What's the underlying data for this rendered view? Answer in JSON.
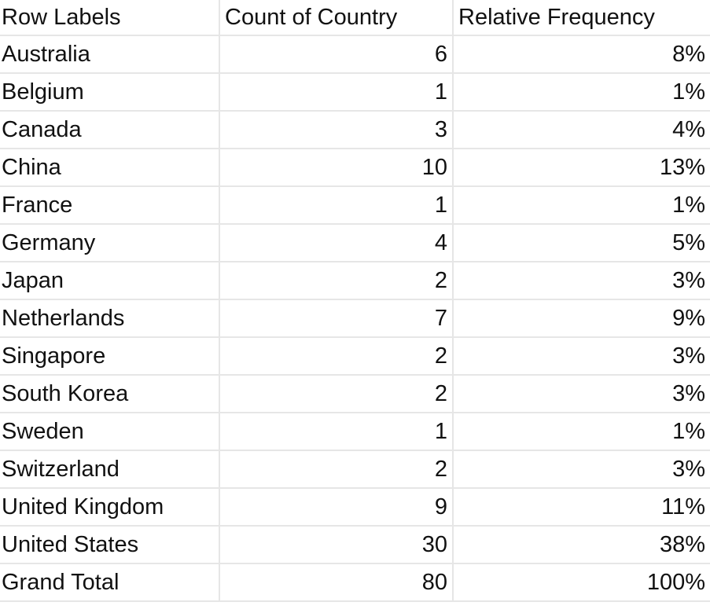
{
  "table": {
    "headers": [
      "Row Labels",
      "Count of Country",
      "Relative Frequency"
    ],
    "rows": [
      {
        "label": "Australia",
        "count": "6",
        "freq": "8%"
      },
      {
        "label": "Belgium",
        "count": "1",
        "freq": "1%"
      },
      {
        "label": "Canada",
        "count": "3",
        "freq": "4%"
      },
      {
        "label": "China",
        "count": "10",
        "freq": "13%"
      },
      {
        "label": "France",
        "count": "1",
        "freq": "1%"
      },
      {
        "label": "Germany",
        "count": "4",
        "freq": "5%"
      },
      {
        "label": "Japan",
        "count": "2",
        "freq": "3%"
      },
      {
        "label": "Netherlands",
        "count": "7",
        "freq": "9%"
      },
      {
        "label": "Singapore",
        "count": "2",
        "freq": "3%"
      },
      {
        "label": "South Korea",
        "count": "2",
        "freq": "3%"
      },
      {
        "label": "Sweden",
        "count": "1",
        "freq": "1%"
      },
      {
        "label": "Switzerland",
        "count": "2",
        "freq": "3%"
      },
      {
        "label": "United Kingdom",
        "count": "9",
        "freq": "11%"
      },
      {
        "label": "United States",
        "count": "30",
        "freq": "38%"
      }
    ],
    "total": {
      "label": "Grand Total",
      "count": "80",
      "freq": "100%"
    }
  },
  "colors": {
    "gridline": "#e6e6e6",
    "text": "#111111",
    "background": "#ffffff"
  }
}
